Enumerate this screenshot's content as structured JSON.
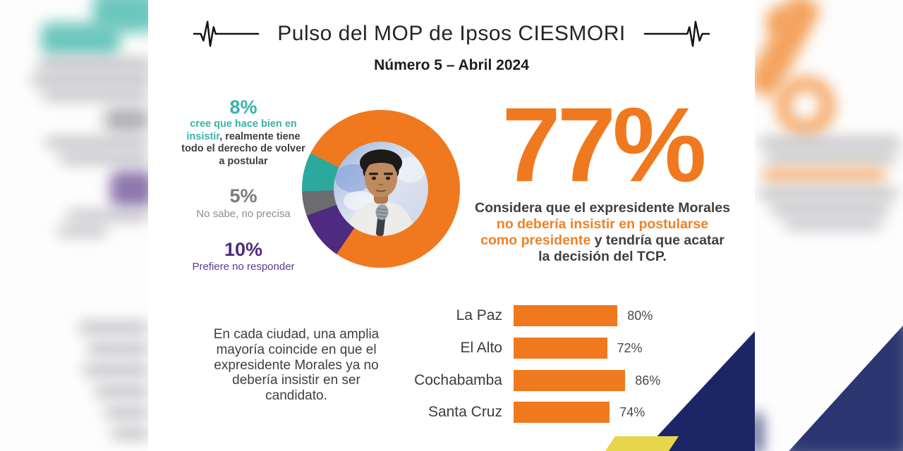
{
  "header": {
    "title": "Pulso del MOP de Ipsos CIESMORI",
    "subtitle": "Número 5 – Abril 2024"
  },
  "legend": {
    "item8": {
      "pct": "8%",
      "l1": "cree que hace bien en",
      "l2a": "insistir",
      "l2b": ", realmente tiene",
      "l3": "todo el derecho de volver",
      "l4": "a postular"
    },
    "item5": {
      "pct": "5%",
      "label": "No sabe, no precisa"
    },
    "item10": {
      "pct": "10%",
      "label": "Prefiere no responder"
    }
  },
  "headline": {
    "big": "77%",
    "l1": "Considera que el expresidente Morales",
    "l2": "no debería insistir en postularse",
    "l3a": "como presidente",
    "l3b": " y tendría que acatar",
    "l4": "la decisión del TCP."
  },
  "cities_intro": {
    "lines": [
      "En cada ciudad, una amplia",
      "mayoría coincide en que el",
      "expresidente Morales ya no",
      "debería insistir en ser",
      "candidato."
    ]
  },
  "colors": {
    "accent_orange": "#F0791F",
    "highlight_orange": "#EE8227",
    "teal": "#2CA99D",
    "gray": "#6C6C70",
    "purple": "#4E2A80",
    "text_dark": "#3F3F41",
    "navy_triangle": "#1C2565",
    "yellow_stripe": "#E7D64C"
  },
  "chart_data": [
    {
      "type": "pie",
      "style": "donut",
      "center_image": "photo of Evo Morales",
      "slices": [
        {
          "label": "Considera que no debería insistir en postularse como presidente",
          "value": 77,
          "color": "#F0791F"
        },
        {
          "label": "Cree que hace bien en insistir",
          "value": 8,
          "color": "#2CA99D"
        },
        {
          "label": "No sabe, no precisa",
          "value": 5,
          "color": "#6C6C70"
        },
        {
          "label": "Prefiere no responder",
          "value": 10,
          "color": "#4E2A80"
        }
      ]
    },
    {
      "type": "bar",
      "orientation": "horizontal",
      "categories": [
        "La Paz",
        "El Alto",
        "Cochabamba",
        "Santa Cruz"
      ],
      "values": [
        80,
        72,
        86,
        74
      ],
      "value_labels": [
        "80%",
        "72%",
        "86%",
        "74%"
      ],
      "bar_color": "#F0791F",
      "xlim": [
        0,
        100
      ]
    }
  ]
}
